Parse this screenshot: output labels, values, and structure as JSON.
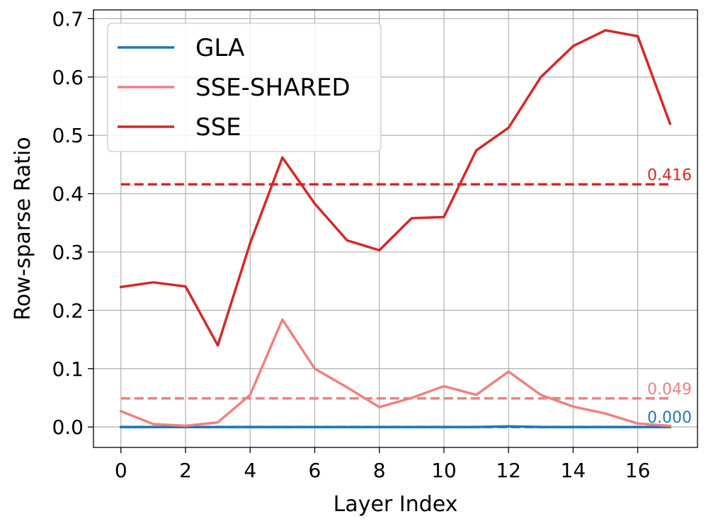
{
  "chart_data": {
    "type": "line",
    "xlabel": "Layer Index",
    "ylabel": "Row-sparse Ratio",
    "xlim": [
      -0.85,
      17.85
    ],
    "ylim": [
      -0.035,
      0.715
    ],
    "xticks": [
      0,
      2,
      4,
      6,
      8,
      10,
      12,
      14,
      16
    ],
    "xtick_labels": [
      "0",
      "2",
      "4",
      "6",
      "8",
      "10",
      "12",
      "14",
      "16"
    ],
    "yticks": [
      0.0,
      0.1,
      0.2,
      0.3,
      0.4,
      0.5,
      0.6,
      0.7
    ],
    "ytick_labels": [
      "0.0",
      "0.1",
      "0.2",
      "0.3",
      "0.4",
      "0.5",
      "0.6",
      "0.7"
    ],
    "grid": true,
    "legend": "top-left",
    "x": [
      0,
      1,
      2,
      3,
      4,
      5,
      6,
      7,
      8,
      9,
      10,
      11,
      12,
      13,
      14,
      15,
      16,
      17
    ],
    "series": [
      {
        "name": "GLA",
        "color": "#1f77b4",
        "values": [
          0.0,
          0.0,
          0.0,
          0.0,
          0.0,
          0.0,
          0.0,
          0.0,
          0.0,
          0.0,
          0.0,
          0.0,
          0.001,
          0.0,
          0.0,
          0.0,
          0.0,
          0.0
        ],
        "mean": 0.0,
        "mean_label": "0.000"
      },
      {
        "name": "SSE-SHARED",
        "color": "#f08080",
        "values": [
          0.027,
          0.005,
          0.002,
          0.008,
          0.055,
          0.184,
          0.1,
          0.068,
          0.034,
          0.05,
          0.07,
          0.055,
          0.095,
          0.055,
          0.035,
          0.023,
          0.006,
          0.002
        ],
        "mean": 0.049,
        "mean_label": "0.049"
      },
      {
        "name": "SSE",
        "color": "#d62728",
        "values": [
          0.24,
          0.248,
          0.241,
          0.14,
          0.315,
          0.462,
          0.383,
          0.32,
          0.303,
          0.358,
          0.36,
          0.474,
          0.513,
          0.6,
          0.653,
          0.68,
          0.67,
          0.52
        ],
        "mean": 0.416,
        "mean_label": "0.416"
      }
    ]
  }
}
